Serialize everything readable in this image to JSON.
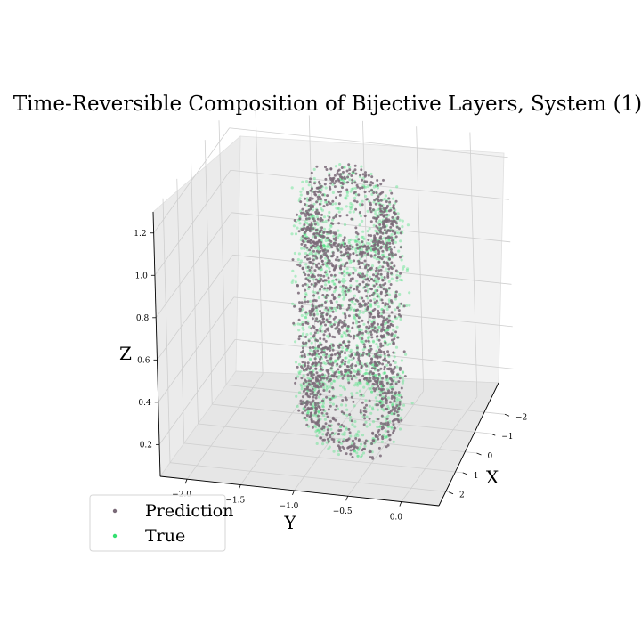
{
  "chart_data": {
    "type": "scatter",
    "projection": "3d",
    "title": "Time-Reversible Composition of Bijective Layers, System (1)",
    "xlabel": "X",
    "ylabel": "Y",
    "zlabel": "Z",
    "x_ticks": [
      "−2",
      "−1",
      "0",
      "1",
      "2"
    ],
    "y_ticks": [
      "−2.0",
      "−1.5",
      "−1.0",
      "−0.5",
      "0.0"
    ],
    "z_ticks": [
      "0.2",
      "0.4",
      "0.6",
      "0.8",
      "1.0",
      "1.2"
    ],
    "grid": true,
    "legend_placement": "lower-left",
    "series": [
      {
        "name": "Prediction",
        "color": "#7a6a78",
        "shape": "torus",
        "center": [
          0.4,
          -0.75,
          0.7
        ],
        "ring_radius": 0.85,
        "tube_radius": 0.35
      },
      {
        "name": "True",
        "color": "#33e070",
        "shape": "torus",
        "center": [
          0.4,
          -0.75,
          0.7
        ],
        "ring_radius": 0.85,
        "tube_radius": 0.35
      }
    ]
  }
}
